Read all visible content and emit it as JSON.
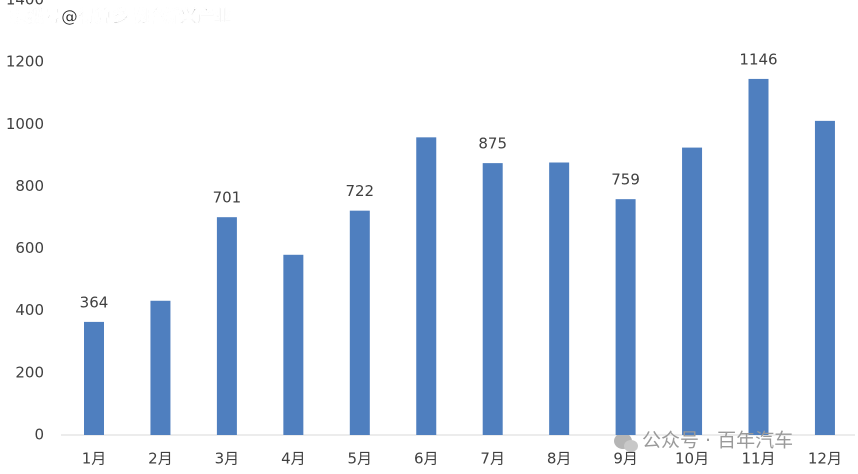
{
  "chart_data": {
    "type": "bar",
    "annotations": [
      "搜狐号@得算多战略新兴产业",
      "公众号 · 百年汽车"
    ],
    "categories": [
      "1月",
      "2月",
      "3月",
      "4月",
      "5月",
      "6月",
      "7月",
      "8月",
      "9月",
      "10月",
      "11月",
      "12月"
    ],
    "values": [
      364,
      432,
      701,
      580,
      722,
      958,
      875,
      877,
      759,
      925,
      1146,
      1011
    ],
    "value_labels": [
      "364",
      null,
      "701",
      null,
      "722",
      null,
      "875",
      null,
      "759",
      null,
      "1146",
      null
    ],
    "color": "#4f7fbf",
    "ylim": [
      0,
      1400
    ],
    "yticks": [
      0,
      200,
      400,
      600,
      800,
      1000,
      1200,
      1400
    ],
    "grid": false
  }
}
